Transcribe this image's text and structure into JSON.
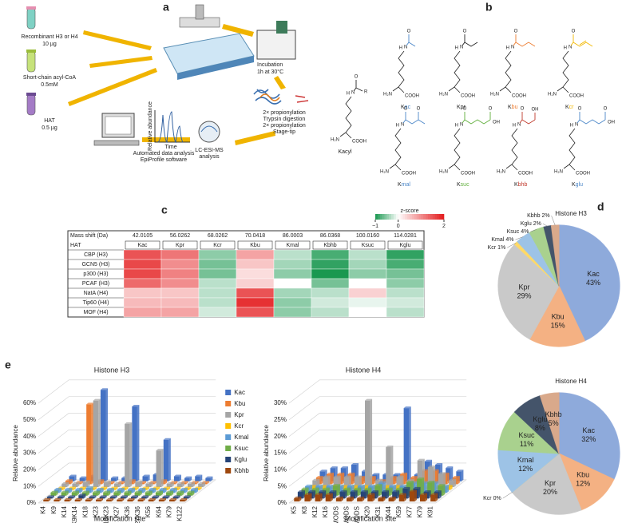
{
  "panel_labels": {
    "a": "a",
    "b": "b",
    "c": "c",
    "d": "d",
    "e": "e"
  },
  "workflow": {
    "protein": "Recombinant H3 or H4",
    "protein_amount": "10 µg",
    "acyl_coa": "Short-chain acyl-CoA",
    "acyl_coa_amount": "0.5mM",
    "hat": "HAT",
    "hat_amount": "0.5 µg",
    "incubation": "Incubation",
    "incubation_conditions": "1h at 30°C",
    "steps": [
      "2× propionylation",
      "Trypsin digestion",
      "2× propionylation",
      "Stage-tip"
    ],
    "lcms": "LC-ESI-MS",
    "lcms_2": "analysis",
    "y_label": "Relative abundance",
    "x_label": "Time",
    "software": "Automated data analysis",
    "software_2": "EpiProfile software"
  },
  "chemistry": {
    "generic": "Kacyl",
    "r": "R",
    "o": "O",
    "n": "N",
    "h": "H",
    "amine": "H₂N",
    "acid": "COOH",
    "hydroxyl": "OH",
    "structures": [
      {
        "prefix": "K",
        "suffix": "ac",
        "color": "#4a86c8"
      },
      {
        "prefix": "K",
        "suffix": "pr",
        "color": "#222222"
      },
      {
        "prefix": "K",
        "suffix": "bu",
        "color": "#ed7d31"
      },
      {
        "prefix": "K",
        "suffix": "cr",
        "color": "#f2b800"
      },
      {
        "prefix": "K",
        "suffix": "mal",
        "color": "#4a86c8"
      },
      {
        "prefix": "K",
        "suffix": "suc",
        "color": "#5fae3a"
      },
      {
        "prefix": "K",
        "suffix": "bhb",
        "color": "#c0392b"
      },
      {
        "prefix": "K",
        "suffix": "glu",
        "color": "#4a86c8"
      }
    ]
  },
  "heatmap": {
    "scale_title": "z-score",
    "zlim": [
      -1,
      2
    ],
    "ticks": [
      {
        "value": -1,
        "label": "−1"
      },
      0,
      2
    ],
    "low_color": "#1a9850",
    "high_color": "#e31a1c",
    "corner_top": "Mass shift (Da)",
    "corner_bottom": "HAT",
    "mass_shifts": [
      "42.0105",
      "56.0262",
      "68.0262",
      "70.0418",
      "86.0003",
      "86.0368",
      "100.0160",
      "114.0281"
    ],
    "modifications": [
      "Kac",
      "Kpr",
      "Kcr",
      "Kbu",
      "Kmal",
      "Kbhb",
      "Ksuc",
      "Kglu"
    ],
    "rows": [
      "CBP (H3)",
      "GCN5 (H3)",
      "p300 (H3)",
      "PCAF (H3)",
      "NatA (H4)",
      "Tip60 (H4)",
      "MOF (H4)"
    ],
    "values": [
      [
        1.5,
        1.2,
        -0.5,
        0.8,
        -0.3,
        -0.8,
        -0.3,
        -0.9
      ],
      [
        1.6,
        1.0,
        -0.6,
        0.5,
        -0.4,
        -0.9,
        -0.4,
        -0.8
      ],
      [
        1.6,
        1.1,
        -0.6,
        0.3,
        -0.5,
        -1.0,
        -0.5,
        -0.6
      ],
      [
        1.3,
        1.0,
        -0.3,
        0.4,
        0,
        -0.6,
        0,
        -0.5
      ],
      [
        0.5,
        0.5,
        -0.3,
        1.5,
        -0.4,
        -0.3,
        0.4,
        -0.3
      ],
      [
        0.6,
        0.6,
        -0.3,
        1.8,
        -0.5,
        -0.2,
        -0.1,
        -0.2
      ],
      [
        0.8,
        0.8,
        -0.2,
        1.5,
        -0.5,
        -0.3,
        0,
        -0.3
      ]
    ]
  },
  "chart_data": [
    {
      "type": "pie",
      "title": "Histone H3",
      "categories": [
        "Kac",
        "Kbu",
        "Kpr",
        "Kcr",
        "Kmal",
        "Ksuc",
        "Kglu",
        "Kbhb"
      ],
      "values": [
        43,
        15,
        29,
        1,
        4,
        4,
        2,
        2
      ],
      "value_labels": [
        "43%",
        "15%",
        "29%",
        "1%",
        "4%",
        "4%",
        "2%",
        "2%"
      ],
      "colors": [
        "#8eaadb",
        "#f4b183",
        "#c9c9c9",
        "#ffd966",
        "#9dc3e6",
        "#a9d18e",
        "#44546a",
        "#d9a98b"
      ]
    },
    {
      "type": "pie",
      "title": "Histone H4",
      "categories": [
        "Kac",
        "Kbu",
        "Kpr",
        "Kcr",
        "Kmal",
        "Ksuc",
        "Kglu",
        "Kbhb"
      ],
      "values": [
        32,
        12,
        20,
        0,
        12,
        11,
        8,
        5
      ],
      "value_labels": [
        "32%",
        "12%",
        "20%",
        "0%",
        "12%",
        "11%",
        "8%",
        "5%"
      ],
      "colors": [
        "#8eaadb",
        "#f4b183",
        "#c9c9c9",
        "#ffd966",
        "#9dc3e6",
        "#a9d18e",
        "#44546a",
        "#d9a98b"
      ]
    },
    {
      "type": "bar3d",
      "title": "Histone H3",
      "x_label": "Modification site",
      "y_label": "Relative abundance",
      "ylim": [
        0,
        60
      ],
      "yticks": [
        {
          "value": 0,
          "label": "0%"
        },
        {
          "value": 10,
          "label": "10%"
        },
        {
          "value": 20,
          "label": "20%"
        },
        {
          "value": 30,
          "label": "30%"
        },
        {
          "value": 40,
          "label": "40%"
        },
        {
          "value": 50,
          "label": "50%"
        },
        {
          "value": 60,
          "label": "60%"
        }
      ],
      "categories": [
        "K4",
        "K9",
        "K14",
        "K9K14",
        "K18",
        "K23",
        "K18K23",
        "K27",
        "K36",
        "K27K36",
        "K56",
        "K64",
        "K79",
        "K122"
      ],
      "series": [
        {
          "name": "Kac",
          "color": "#4472c4",
          "values": [
            3,
            2,
            3,
            55,
            2,
            2,
            45,
            3,
            4,
            25,
            3,
            2,
            3,
            2
          ]
        },
        {
          "name": "Kbu",
          "color": "#ed7d31",
          "values": [
            2,
            1,
            48,
            2,
            1,
            1,
            2,
            1,
            1,
            2,
            1,
            1,
            1,
            1
          ]
        },
        {
          "name": "Kpr",
          "color": "#a5a5a5",
          "values": [
            2,
            2,
            3,
            52,
            3,
            2,
            38,
            3,
            2,
            22,
            2,
            2,
            2,
            2
          ]
        },
        {
          "name": "Kcr",
          "color": "#ffc000",
          "values": [
            1,
            1,
            1,
            1,
            1,
            1,
            1,
            1,
            1,
            1,
            1,
            1,
            1,
            1
          ]
        },
        {
          "name": "Kmal",
          "color": "#5b9bd5",
          "values": [
            2,
            2,
            2,
            3,
            2,
            2,
            2,
            2,
            2,
            2,
            2,
            2,
            2,
            2
          ]
        },
        {
          "name": "Ksuc",
          "color": "#70ad47",
          "values": [
            2,
            2,
            2,
            2,
            2,
            2,
            2,
            2,
            2,
            2,
            2,
            2,
            2,
            2
          ]
        },
        {
          "name": "Kglu",
          "color": "#264478",
          "values": [
            1,
            1,
            1,
            2,
            1,
            1,
            1,
            1,
            1,
            1,
            1,
            1,
            1,
            1
          ]
        },
        {
          "name": "Kbhb",
          "color": "#9e480e",
          "values": [
            1,
            1,
            1,
            1,
            1,
            1,
            1,
            1,
            1,
            1,
            1,
            1,
            1,
            1
          ]
        }
      ]
    },
    {
      "type": "bar3d",
      "title": "Histone H4",
      "x_label": "Modification site",
      "y_label": "Relative abundance",
      "ylim": [
        0,
        30
      ],
      "yticks": [
        {
          "value": 0,
          "label": "0%"
        },
        {
          "value": 5,
          "label": "5%"
        },
        {
          "value": 10,
          "label": "10%"
        },
        {
          "value": 15,
          "label": "15%"
        },
        {
          "value": 20,
          "label": "20%"
        },
        {
          "value": 25,
          "label": "25%"
        },
        {
          "value": 30,
          "label": "30%"
        }
      ],
      "categories": [
        "K5",
        "K8",
        "K12",
        "K16",
        "2MODS",
        "3MODS",
        "4MODS",
        "K20",
        "K31",
        "K44",
        "K59",
        "K77",
        "K79",
        "K91"
      ],
      "series": [
        {
          "color": "#4472c4",
          "values": [
            3,
            4,
            4,
            5,
            3,
            2,
            2,
            2,
            22,
            2,
            6,
            5,
            4,
            3
          ]
        },
        {
          "color": "#ed7d31",
          "values": [
            2,
            3,
            3,
            3,
            2,
            2,
            1,
            2,
            3,
            2,
            4,
            4,
            3,
            2
          ]
        },
        {
          "color": "#a5a5a5",
          "values": [
            2,
            3,
            3,
            3,
            3,
            26,
            2,
            12,
            3,
            2,
            8,
            6,
            4,
            2
          ]
        },
        {
          "color": "#ffc000",
          "values": [
            1,
            1,
            1,
            1,
            1,
            1,
            1,
            1,
            1,
            1,
            1,
            1,
            1,
            1
          ]
        },
        {
          "color": "#5b9bd5",
          "values": [
            2,
            2,
            2,
            2,
            2,
            2,
            2,
            3,
            2,
            2,
            3,
            3,
            3,
            2
          ]
        },
        {
          "color": "#70ad47",
          "values": [
            2,
            2,
            2,
            3,
            2,
            2,
            2,
            3,
            2,
            2,
            4,
            5,
            4,
            3
          ]
        },
        {
          "color": "#264478",
          "values": [
            2,
            2,
            2,
            2,
            2,
            2,
            2,
            2,
            2,
            2,
            3,
            3,
            2,
            2
          ]
        },
        {
          "color": "#9e480e",
          "values": [
            1,
            2,
            2,
            2,
            1,
            1,
            1,
            2,
            1,
            1,
            2,
            3,
            2,
            2
          ]
        }
      ]
    }
  ]
}
